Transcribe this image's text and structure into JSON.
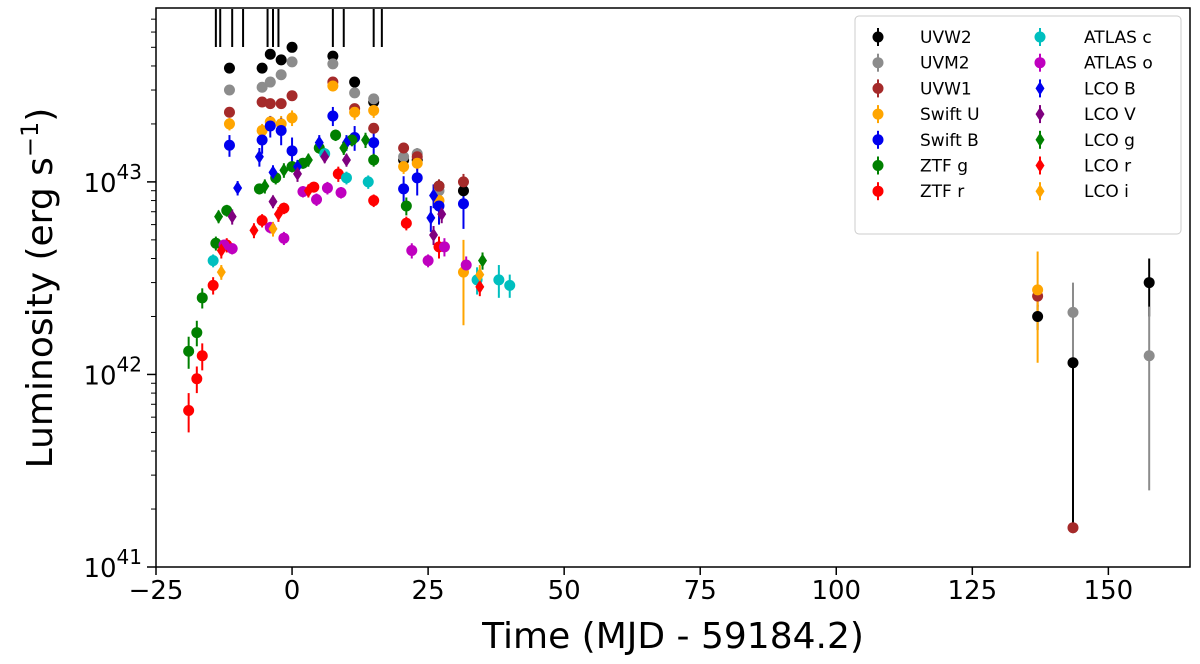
{
  "chart_data": {
    "type": "scatter",
    "title": "",
    "xlabel": "Time (MJD - 59184.2)",
    "ylabel_base": "Luminosity (erg s",
    "ylabel_exp": "−1",
    "ylabel_close": ")",
    "xlim": [
      -25,
      165
    ],
    "ylim": [
      1e+41,
      8e+43
    ],
    "yscale": "log",
    "grid": false,
    "legend_position": "top-right",
    "x_ticks": [
      -25,
      0,
      25,
      50,
      75,
      100,
      125,
      150
    ],
    "x_tick_labels": [
      "−25",
      "0",
      "25",
      "50",
      "75",
      "100",
      "125",
      "150"
    ],
    "y_ticks": [
      1e+41,
      1e+42,
      1e+43
    ],
    "y_tick_labels": [
      {
        "base": "10",
        "exp": "41"
      },
      {
        "base": "10",
        "exp": "42"
      },
      {
        "base": "10",
        "exp": "43"
      }
    ],
    "epoch_markers": [
      -14,
      -13.2,
      -11,
      -9,
      -4.5,
      -3.5,
      -2.5,
      7.5,
      9.5,
      15,
      16.5
    ],
    "series": [
      {
        "name": "UVW2",
        "color": "#000000",
        "marker": "circle",
        "points": [
          [
            -11.5,
            3.9e+43,
            2e+42
          ],
          [
            -5.5,
            3.9e+43,
            2e+42
          ],
          [
            -4,
            4.6e+43,
            2e+42
          ],
          [
            -2,
            4.3e+43,
            2e+42
          ],
          [
            0,
            5e+43,
            2e+42
          ],
          [
            7.5,
            4.5e+43,
            2e+42
          ],
          [
            11.5,
            3.3e+43,
            1.5e+42
          ],
          [
            15,
            2.6e+43,
            1.5e+42
          ],
          [
            20.5,
            1.3e+43,
            1e+42
          ],
          [
            23,
            1.3e+43,
            1e+42
          ],
          [
            27,
            9.5e+42,
            8e+41
          ],
          [
            31.5,
            9e+42,
            1e+42
          ],
          [
            137,
            2e+42,
            3e+41
          ],
          [
            143.5,
            1.15e+42,
            1e+42
          ],
          [
            157.5,
            3e+42,
            1e+42
          ]
        ]
      },
      {
        "name": "UVM2",
        "color": "#8c8c8c",
        "marker": "circle",
        "points": [
          [
            -11.5,
            3e+43,
            1.5e+42
          ],
          [
            -5.5,
            3.1e+43,
            1.5e+42
          ],
          [
            -4,
            3.3e+43,
            1.5e+42
          ],
          [
            -2,
            3.6e+43,
            1.5e+42
          ],
          [
            0,
            4.2e+43,
            2e+42
          ],
          [
            7.5,
            4.1e+43,
            2e+42
          ],
          [
            11.5,
            2.9e+43,
            1.5e+42
          ],
          [
            15,
            2.7e+43,
            1.5e+42
          ],
          [
            20.5,
            1.35e+43,
            1e+42
          ],
          [
            23,
            1.4e+43,
            1e+42
          ],
          [
            27,
            9e+42,
            8e+41
          ],
          [
            143.5,
            2.1e+42,
            9e+41
          ],
          [
            157.5,
            1.25e+42,
            1e+42
          ]
        ]
      },
      {
        "name": "UVW1",
        "color": "#a52a2a",
        "marker": "circle",
        "points": [
          [
            -11.5,
            2.3e+43,
            1e+42
          ],
          [
            -5.5,
            2.6e+43,
            1.2e+42
          ],
          [
            -4,
            2.55e+43,
            1.2e+42
          ],
          [
            -2,
            2.55e+43,
            1.2e+42
          ],
          [
            0,
            2.8e+43,
            1.2e+42
          ],
          [
            7.5,
            3.3e+43,
            1.5e+42
          ],
          [
            11.5,
            2.4e+43,
            1.2e+42
          ],
          [
            15,
            1.9e+43,
            1e+42
          ],
          [
            20.5,
            1.5e+43,
            1e+42
          ],
          [
            23,
            1.35e+43,
            1e+42
          ],
          [
            27,
            9.5e+42,
            8e+41
          ],
          [
            31.5,
            1e+43,
            1e+42
          ],
          [
            137,
            2.55e+42,
            3e+41
          ],
          [
            143.5,
            1.6e+41,
            6e+39
          ]
        ]
      },
      {
        "name": "Swift U",
        "color": "#ffa500",
        "marker": "circle",
        "points": [
          [
            -11.5,
            2e+43,
            1.5e+42
          ],
          [
            -5.5,
            1.85e+43,
            1.5e+42
          ],
          [
            -4,
            2.05e+43,
            1.5e+42
          ],
          [
            -2,
            2e+43,
            2e+42
          ],
          [
            0,
            2.15e+43,
            2e+42
          ],
          [
            7.5,
            3.15e+43,
            2e+42
          ],
          [
            11.5,
            2.3e+43,
            2e+42
          ],
          [
            15,
            2.35e+43,
            2e+42
          ],
          [
            20.5,
            1.2e+43,
            1e+42
          ],
          [
            23,
            1.25e+43,
            1e+42
          ],
          [
            27,
            8e+42,
            1e+42
          ],
          [
            31.5,
            3.4e+42,
            1.6e+42
          ],
          [
            137,
            2.75e+42,
            1.6e+42
          ]
        ]
      },
      {
        "name": "Swift B",
        "color": "#0000ee",
        "marker": "circle",
        "points": [
          [
            -11.5,
            1.55e+43,
            2e+42
          ],
          [
            -5.5,
            1.65e+43,
            2.5e+42
          ],
          [
            -4,
            1.95e+43,
            2.5e+42
          ],
          [
            -2,
            1.85e+43,
            3e+42
          ],
          [
            0,
            1.45e+43,
            2.5e+42
          ],
          [
            7.5,
            2.2e+43,
            2.5e+42
          ],
          [
            11.5,
            1.7e+43,
            2.5e+42
          ],
          [
            15,
            1.6e+43,
            2.5e+42
          ],
          [
            20.5,
            9.2e+42,
            1.5e+42
          ],
          [
            23,
            1.05e+43,
            2e+42
          ],
          [
            27,
            7.5e+42,
            1.5e+42
          ],
          [
            31.5,
            7.7e+42,
            2e+42
          ]
        ]
      },
      {
        "name": "ZTF g",
        "color": "#008000",
        "marker": "circle",
        "points": [
          [
            -19,
            1.32e+42,
            2.5e+41
          ],
          [
            -17.5,
            1.65e+42,
            2.5e+41
          ],
          [
            -16.5,
            2.5e+42,
            3e+41
          ],
          [
            -14,
            4.8e+42,
            4e+41
          ],
          [
            -12,
            7.1e+42,
            5e+41
          ],
          [
            -6,
            9.2e+42,
            6e+41
          ],
          [
            -3,
            1.05e+43,
            8e+41
          ],
          [
            0,
            1.2e+43,
            8e+41
          ],
          [
            2,
            1.25e+43,
            8e+41
          ],
          [
            5,
            1.5e+43,
            1e+42
          ],
          [
            8,
            1.75e+43,
            1.2e+42
          ],
          [
            11,
            1.65e+43,
            1.2e+42
          ],
          [
            15,
            1.3e+43,
            1e+42
          ],
          [
            21,
            7.5e+42,
            8e+41
          ]
        ]
      },
      {
        "name": "ZTF r",
        "color": "#ff0000",
        "marker": "circle",
        "points": [
          [
            -19,
            6.5e+41,
            1.5e+41
          ],
          [
            -17.5,
            9.5e+41,
            1.5e+41
          ],
          [
            -16.5,
            1.25e+42,
            2e+41
          ],
          [
            -14.5,
            2.9e+42,
            3e+41
          ],
          [
            -12,
            4.7e+42,
            4e+41
          ],
          [
            -5.5,
            6.3e+42,
            5e+41
          ],
          [
            -1.5,
            7.3e+42,
            5e+41
          ],
          [
            4,
            9.4e+42,
            6e+41
          ],
          [
            8.5,
            1.1e+43,
            1e+42
          ],
          [
            15,
            8e+42,
            6e+41
          ],
          [
            21,
            6.1e+42,
            5e+41
          ],
          [
            27,
            4.6e+42,
            6e+41
          ]
        ]
      },
      {
        "name": "ATLAS c",
        "color": "#00bfbf",
        "marker": "circle",
        "points": [
          [
            -14.5,
            3.9e+42,
            3e+41
          ],
          [
            6,
            1.4e+43,
            1e+42
          ],
          [
            10,
            1.05e+43,
            8e+41
          ],
          [
            14,
            1e+43,
            8e+41
          ],
          [
            34,
            3.1e+42,
            5e+41
          ],
          [
            38,
            3.1e+42,
            6e+41
          ],
          [
            40,
            2.9e+42,
            4e+41
          ]
        ]
      },
      {
        "name": "ATLAS o",
        "color": "#bf00bf",
        "marker": "circle",
        "points": [
          [
            -12.5,
            4.7e+42,
            3e+41
          ],
          [
            -11,
            4.5e+42,
            3e+41
          ],
          [
            -4,
            5.8e+42,
            4e+41
          ],
          [
            -1.5,
            5.1e+42,
            4e+41
          ],
          [
            2,
            8.9e+42,
            6e+41
          ],
          [
            4.5,
            8.1e+42,
            6e+41
          ],
          [
            6.5,
            9.3e+42,
            7e+41
          ],
          [
            9,
            8.8e+42,
            6e+41
          ],
          [
            22,
            4.4e+42,
            4e+41
          ],
          [
            25,
            3.9e+42,
            3e+41
          ],
          [
            28,
            4.6e+42,
            5e+41
          ],
          [
            32,
            3.7e+42,
            4e+41
          ]
        ]
      },
      {
        "name": "LCO B",
        "color": "#0000ee",
        "marker": "diamond",
        "points": [
          [
            -10,
            9.3e+42,
            8e+41
          ],
          [
            -6,
            1.35e+43,
            1.5e+42
          ],
          [
            -3.5,
            1.12e+43,
            1e+42
          ],
          [
            1,
            1.2e+43,
            1e+42
          ],
          [
            5,
            1.6e+43,
            1.5e+42
          ],
          [
            10,
            1.6e+43,
            1.5e+42
          ],
          [
            26,
            8.5e+42,
            1.2e+42
          ],
          [
            25.5,
            6.5e+42,
            1e+42
          ]
        ]
      },
      {
        "name": "LCO V",
        "color": "#7f007f",
        "marker": "diamond",
        "points": [
          [
            -11,
            6.6e+42,
            6e+41
          ],
          [
            -3.5,
            7.9e+42,
            6e+41
          ],
          [
            1,
            1.1e+43,
            1e+42
          ],
          [
            6,
            1.35e+43,
            1e+42
          ],
          [
            10,
            1.3e+43,
            1e+42
          ],
          [
            26,
            5.3e+42,
            6e+41
          ],
          [
            27.5,
            6.8e+42,
            7e+41
          ]
        ]
      },
      {
        "name": "LCO g",
        "color": "#008000",
        "marker": "diamond",
        "points": [
          [
            -13.5,
            6.6e+42,
            5e+41
          ],
          [
            -5,
            9.5e+42,
            8e+41
          ],
          [
            -1.5,
            1.15e+43,
            1e+42
          ],
          [
            3,
            1.3e+43,
            1e+42
          ],
          [
            9.5,
            1.5e+43,
            1.2e+42
          ],
          [
            13.5,
            1.65e+43,
            1.5e+42
          ],
          [
            35,
            3.9e+42,
            4e+41
          ]
        ]
      },
      {
        "name": "LCO r",
        "color": "#ff0000",
        "marker": "diamond",
        "points": [
          [
            -13,
            4.4e+42,
            4e+41
          ],
          [
            -7,
            5.6e+42,
            5e+41
          ],
          [
            -2.5,
            6.8e+42,
            6e+41
          ],
          [
            3,
            9e+42,
            7e+41
          ],
          [
            34.5,
            2.85e+42,
            3e+41
          ]
        ]
      },
      {
        "name": "LCO i",
        "color": "#ffa500",
        "marker": "diamond",
        "points": [
          [
            -13,
            3.4e+42,
            3e+41
          ],
          [
            -3.5,
            5.7e+42,
            5e+41
          ],
          [
            34.5,
            3.3e+42,
            4e+41
          ]
        ]
      }
    ]
  }
}
